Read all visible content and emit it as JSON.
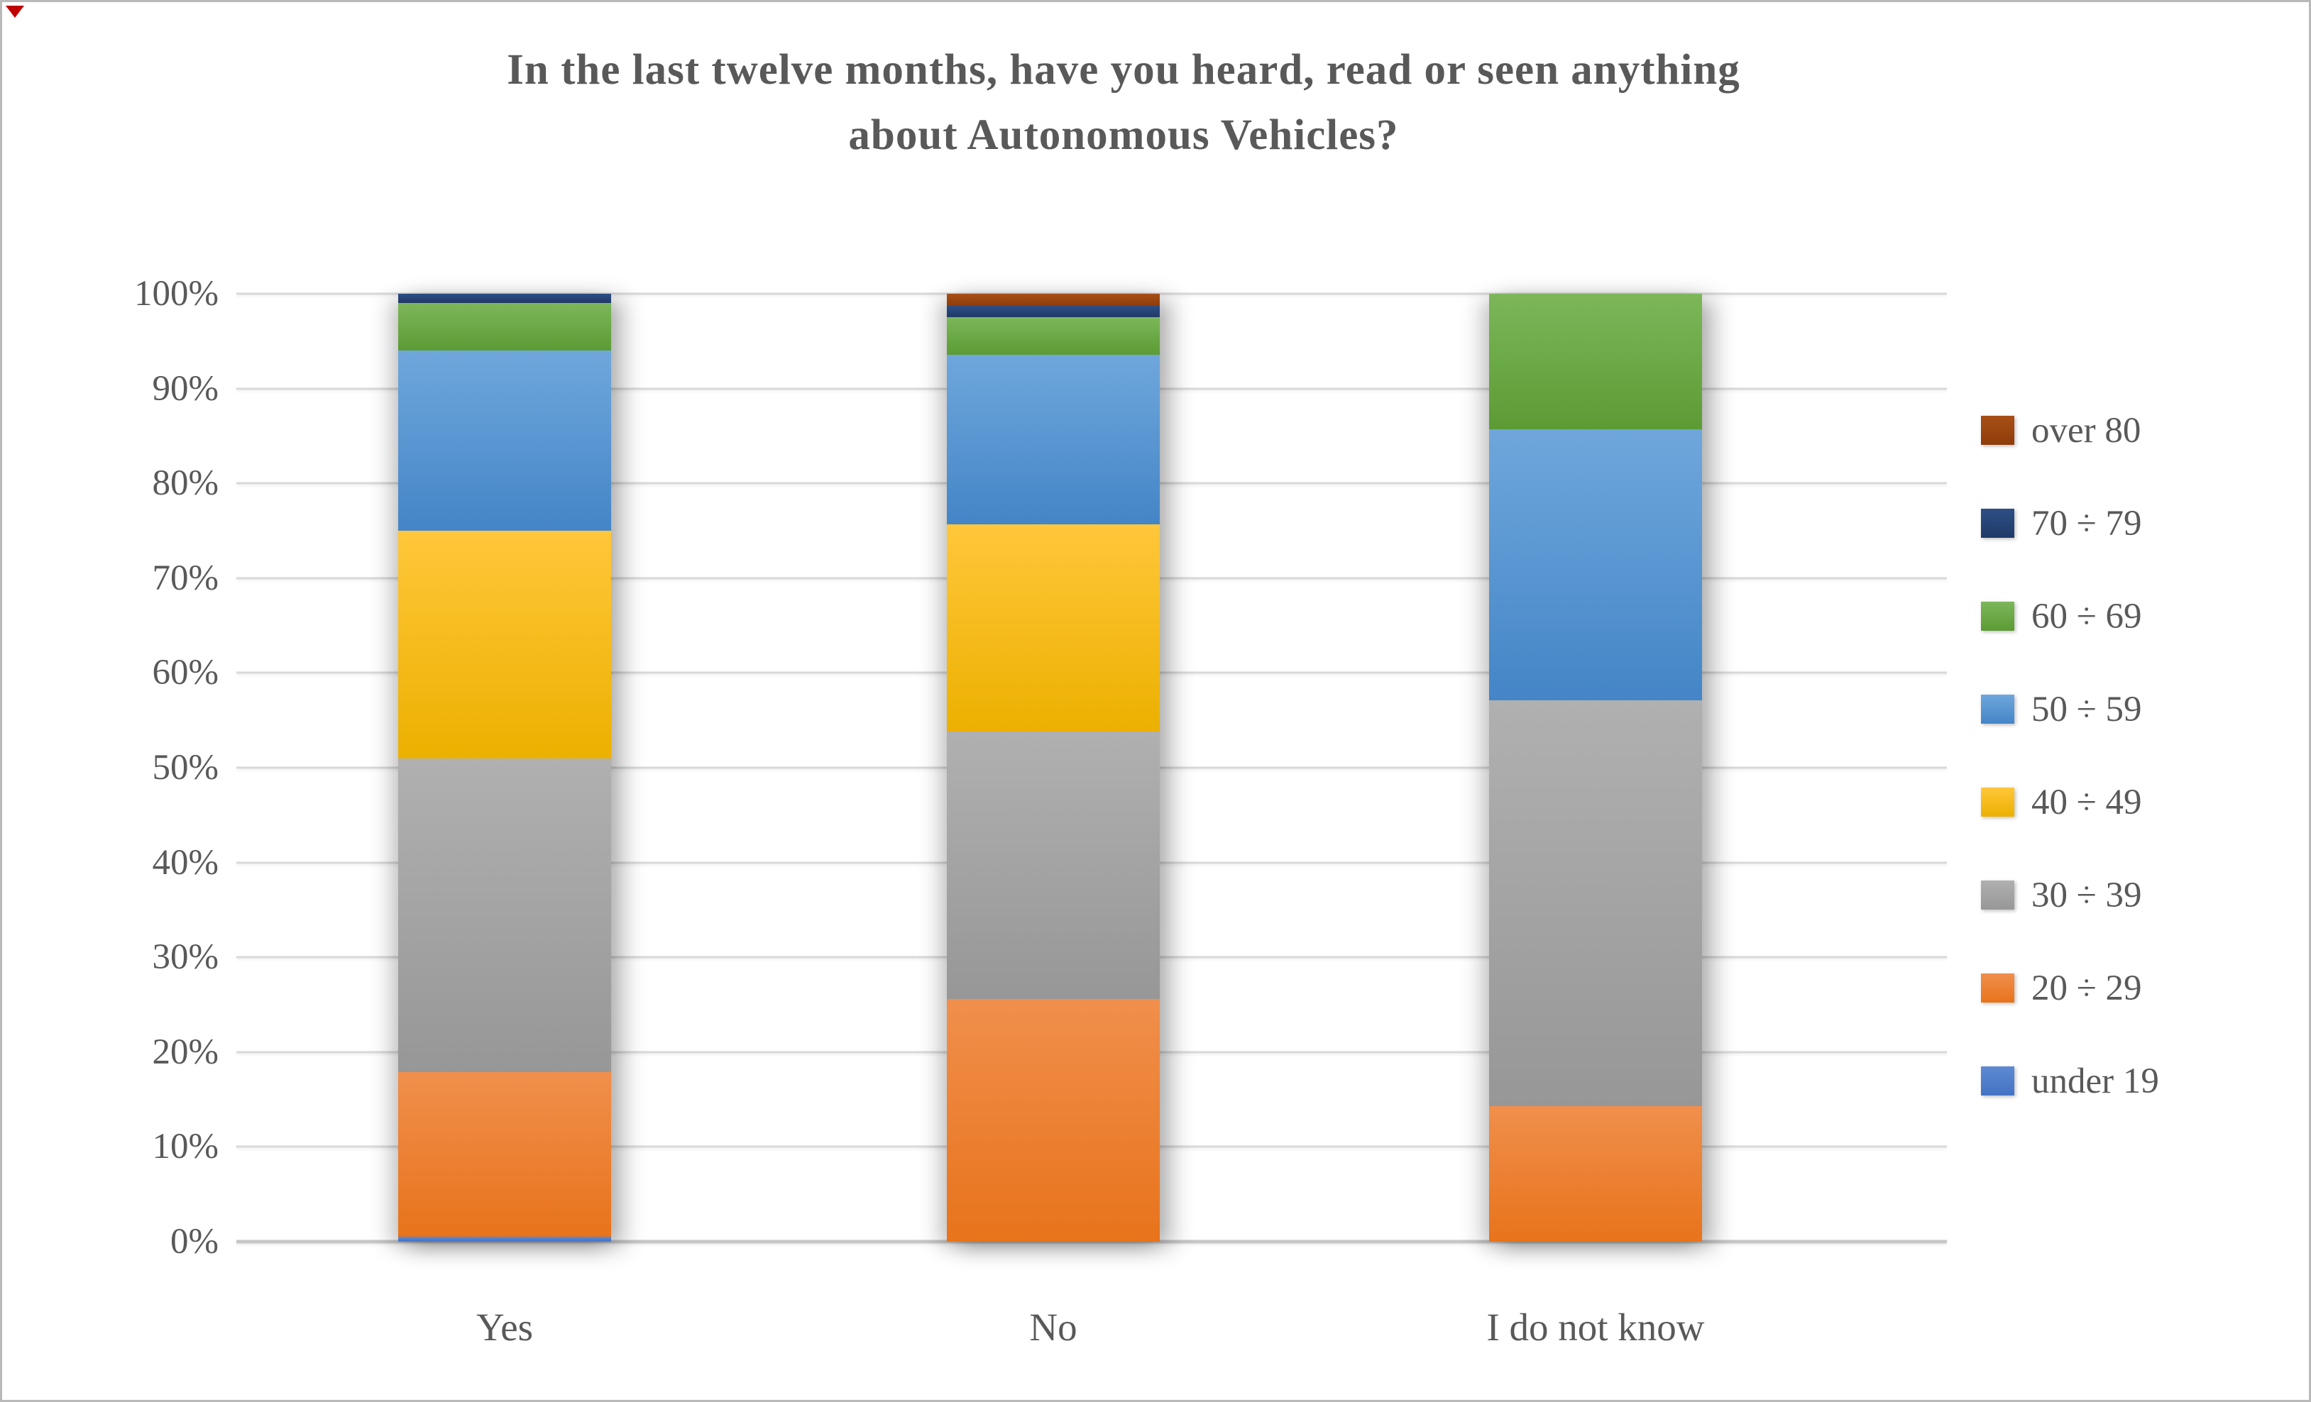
{
  "page": {
    "corner_mark_color": "#c00000",
    "border_color": "#b9b9b9",
    "background_color": "#ffffff",
    "text_color": "#595959"
  },
  "chart_data": {
    "type": "bar",
    "stacked": true,
    "title": "In the last twelve months, have you heard, read or seen anything about Autonomous Vehicles?",
    "title_lines": [
      "In the last twelve months, have you heard, read or seen anything",
      "about Autonomous Vehicles?"
    ],
    "categories": [
      "Yes",
      "No",
      "I do not know"
    ],
    "series": [
      {
        "name": "under 19",
        "color": "#4472c4",
        "color_light": "#5e8ad2",
        "values": [
          0.5,
          0,
          0
        ]
      },
      {
        "name": "20 ÷ 29",
        "color": "#e8731b",
        "color_light": "#f08f4c",
        "values": [
          17.4,
          25.6,
          14.3
        ]
      },
      {
        "name": "30 ÷ 39",
        "color": "#979797",
        "color_light": "#b0b0b0",
        "values": [
          33.1,
          28.2,
          42.8
        ]
      },
      {
        "name": "40 ÷ 49",
        "color": "#ecb000",
        "color_light": "#ffc73a",
        "values": [
          24.0,
          21.9,
          0
        ]
      },
      {
        "name": "50 ÷ 59",
        "color": "#4485c7",
        "color_light": "#6fa7dc",
        "values": [
          19.0,
          17.9,
          28.6
        ]
      },
      {
        "name": "60 ÷ 69",
        "color": "#5c9b34",
        "color_light": "#7cb75a",
        "values": [
          5.0,
          3.9,
          14.3
        ]
      },
      {
        "name": "70 ÷ 79",
        "color": "#1f3a66",
        "color_light": "#2d4f87",
        "values": [
          1.0,
          1.2,
          0
        ]
      },
      {
        "name": "over 80",
        "color": "#8f3c09",
        "color_light": "#a84f17",
        "values": [
          0,
          1.3,
          0
        ]
      }
    ],
    "xlabel": "",
    "ylabel": "",
    "ylim": [
      0,
      100
    ],
    "yticks": [
      {
        "v": 0,
        "label": "0%"
      },
      {
        "v": 10,
        "label": "10%"
      },
      {
        "v": 20,
        "label": "20%"
      },
      {
        "v": 30,
        "label": "30%"
      },
      {
        "v": 40,
        "label": "40%"
      },
      {
        "v": 50,
        "label": "50%"
      },
      {
        "v": 60,
        "label": "60%"
      },
      {
        "v": 70,
        "label": "70%"
      },
      {
        "v": 80,
        "label": "80%"
      },
      {
        "v": 90,
        "label": "90%"
      },
      {
        "v": 100,
        "label": "100%"
      }
    ],
    "grid": true,
    "gridline_color": "#d9d9d9",
    "legend_position": "right",
    "legend_order": "reversed"
  }
}
